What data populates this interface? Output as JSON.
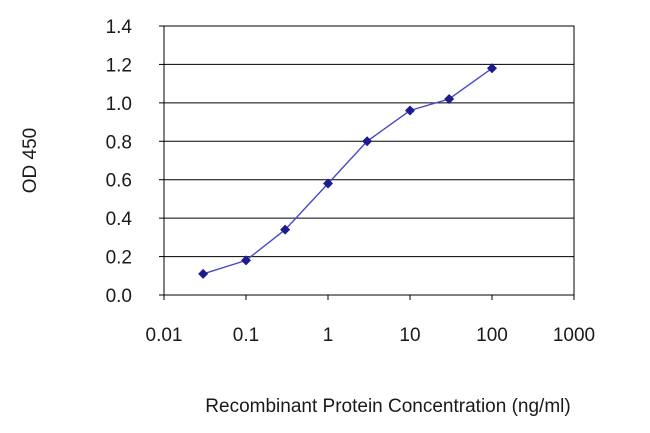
{
  "chart_data": {
    "type": "line",
    "title": "",
    "xlabel": "Recombinant Protein Concentration (ng/ml)",
    "ylabel": "OD 450",
    "x_scale": "log",
    "xlim": [
      0.01,
      1000
    ],
    "ylim": [
      0.0,
      1.4
    ],
    "x_ticks": [
      0.01,
      0.1,
      1,
      10,
      100,
      1000
    ],
    "x_tick_labels": [
      "0.01",
      "0.1",
      "1",
      "10",
      "100",
      "1000"
    ],
    "y_ticks": [
      0.0,
      0.2,
      0.4,
      0.6,
      0.8,
      1.0,
      1.2,
      1.4
    ],
    "y_tick_labels": [
      "0.0",
      "0.2",
      "0.4",
      "0.6",
      "0.8",
      "1.0",
      "1.2",
      "1.4"
    ],
    "grid": "horizontal",
    "legend": "none",
    "series": [
      {
        "x": [
          0.03,
          0.1,
          0.3,
          1,
          3,
          10,
          30,
          100
        ],
        "y": [
          0.11,
          0.18,
          0.34,
          0.58,
          0.8,
          0.96,
          1.02,
          1.18
        ],
        "line_color": "#4a4ac8",
        "marker_color": "#1c1c8c"
      }
    ]
  }
}
